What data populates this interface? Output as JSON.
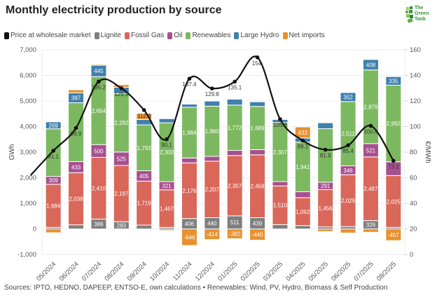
{
  "title": "Monthly electricity production by source",
  "logo": {
    "name": "The Green Tank",
    "lines": [
      "The",
      "Green",
      "Tank"
    ]
  },
  "legend": [
    {
      "key": "price",
      "label": "Price at wholesale market",
      "color": "#111111"
    },
    {
      "key": "lignite",
      "label": "Lignite",
      "color": "#7f7f7f"
    },
    {
      "key": "gas",
      "label": "Fossil Gas",
      "color": "#d9675a"
    },
    {
      "key": "oil",
      "label": "Oil",
      "color": "#a8508f"
    },
    {
      "key": "renewables",
      "label": "Renewables",
      "color": "#7cb860"
    },
    {
      "key": "hydro",
      "label": "Large Hydro",
      "color": "#3f80ad"
    },
    {
      "key": "imports",
      "label": "Net imports",
      "color": "#e8912f"
    }
  ],
  "footer": "Sources: IPTO, HEDNO, DAPEEP, ENTSO-E, own calculations • Renewables: Wind, PV, Hydro, Biomass & Self Production",
  "chart_data": {
    "type": "bar",
    "title": "Monthly electricity production by source",
    "xlabel": "",
    "ylabel": "GWh",
    "y2label": "€/MWh",
    "ylim": [
      -1000,
      7000
    ],
    "y2lim": [
      0,
      160
    ],
    "yticks": [
      -1000,
      0,
      1000,
      2000,
      3000,
      4000,
      5000,
      6000,
      7000
    ],
    "ytick_labels": [
      "-1,000",
      "0",
      "1,000",
      "2,000",
      "3,000",
      "4,000",
      "5,000",
      "6,000",
      "7,000"
    ],
    "y2ticks": [
      0,
      20,
      40,
      60,
      80,
      100,
      120,
      140,
      160
    ],
    "grid": true,
    "legend_position": "top-left",
    "stacked": true,
    "categories": [
      "05/2024",
      "06/2024",
      "07/2024",
      "08/2024",
      "09/2024",
      "10/2024",
      "11/2024",
      "12/2024",
      "01/2025",
      "02/2025",
      "03/2025",
      "04/2025",
      "05/2025",
      "06/2025",
      "07/2025",
      "08/2025"
    ],
    "series": [
      {
        "name": "Lignite",
        "key": "lignite",
        "values": [
          60,
          160,
          386,
          283,
          150,
          60,
          406,
          440,
          511,
          439,
          170,
          130,
          80,
          90,
          326,
          60
        ],
        "labeled": [
          false,
          false,
          true,
          true,
          false,
          false,
          true,
          true,
          true,
          true,
          false,
          false,
          false,
          false,
          true,
          false
        ]
      },
      {
        "name": "Fossil Gas",
        "key": "gas",
        "values": [
          1684,
          2038,
          2410,
          2197,
          1719,
          1467,
          2176,
          2207,
          2357,
          2458,
          1510,
          1092,
          1456,
          2029,
          2487,
          2025
        ],
        "labeled": [
          true,
          true,
          true,
          true,
          true,
          true,
          true,
          true,
          true,
          true,
          true,
          true,
          true,
          true,
          true,
          true
        ]
      },
      {
        "name": "Oil",
        "key": "oil",
        "values": [
          309,
          433,
          500,
          525,
          405,
          321,
          190,
          190,
          200,
          200,
          170,
          230,
          291,
          346,
          521,
          540
        ],
        "labeled": [
          true,
          true,
          true,
          true,
          true,
          true,
          false,
          false,
          false,
          false,
          false,
          false,
          true,
          true,
          true,
          false
        ]
      },
      {
        "name": "Renewables",
        "key": "renewables",
        "values": [
          1860,
          2300,
          2654,
          2292,
          1793,
          2300,
          1984,
          1960,
          1772,
          1689,
          2307,
          1941,
          2090,
          2511,
          2879,
          2992
        ],
        "labeled": [
          false,
          false,
          true,
          true,
          true,
          true,
          true,
          true,
          true,
          true,
          true,
          true,
          false,
          true,
          true,
          true
        ]
      },
      {
        "name": "Large Hydro",
        "key": "hydro",
        "values": [
          269,
          387,
          445,
          240,
          210,
          160,
          120,
          200,
          230,
          180,
          120,
          160,
          230,
          352,
          408,
          335
        ],
        "labeled": [
          true,
          true,
          true,
          false,
          false,
          false,
          false,
          false,
          false,
          false,
          false,
          false,
          false,
          true,
          true,
          true
        ]
      },
      {
        "name": "Net imports",
        "key": "imports",
        "values": [
          -150,
          120,
          40,
          100,
          230,
          -60,
          -646,
          -414,
          -382,
          -440,
          -30,
          433,
          -100,
          -160,
          -130,
          -457
        ],
        "labeled": [
          false,
          false,
          false,
          false,
          false,
          false,
          true,
          true,
          true,
          true,
          false,
          true,
          false,
          false,
          false,
          true
        ]
      }
    ],
    "line": {
      "name": "Price at wholesale market",
      "axis": "right",
      "values": [
        81.1,
        98.9,
        135.2,
        129.9,
        112.9,
        90.1,
        137.4,
        129.8,
        135.1,
        154.1,
        105.8,
        89.1,
        81.9,
        85.4,
        100.6,
        73.2
      ],
      "labels": [
        "81.1",
        "98.9",
        "135.2",
        "129.9",
        "112.9",
        "90.1",
        "137.4",
        "129.8",
        "135.1",
        "154.",
        "105.8",
        "89.1",
        "81.9",
        "85.4",
        "100.6",
        "73.2"
      ]
    }
  }
}
